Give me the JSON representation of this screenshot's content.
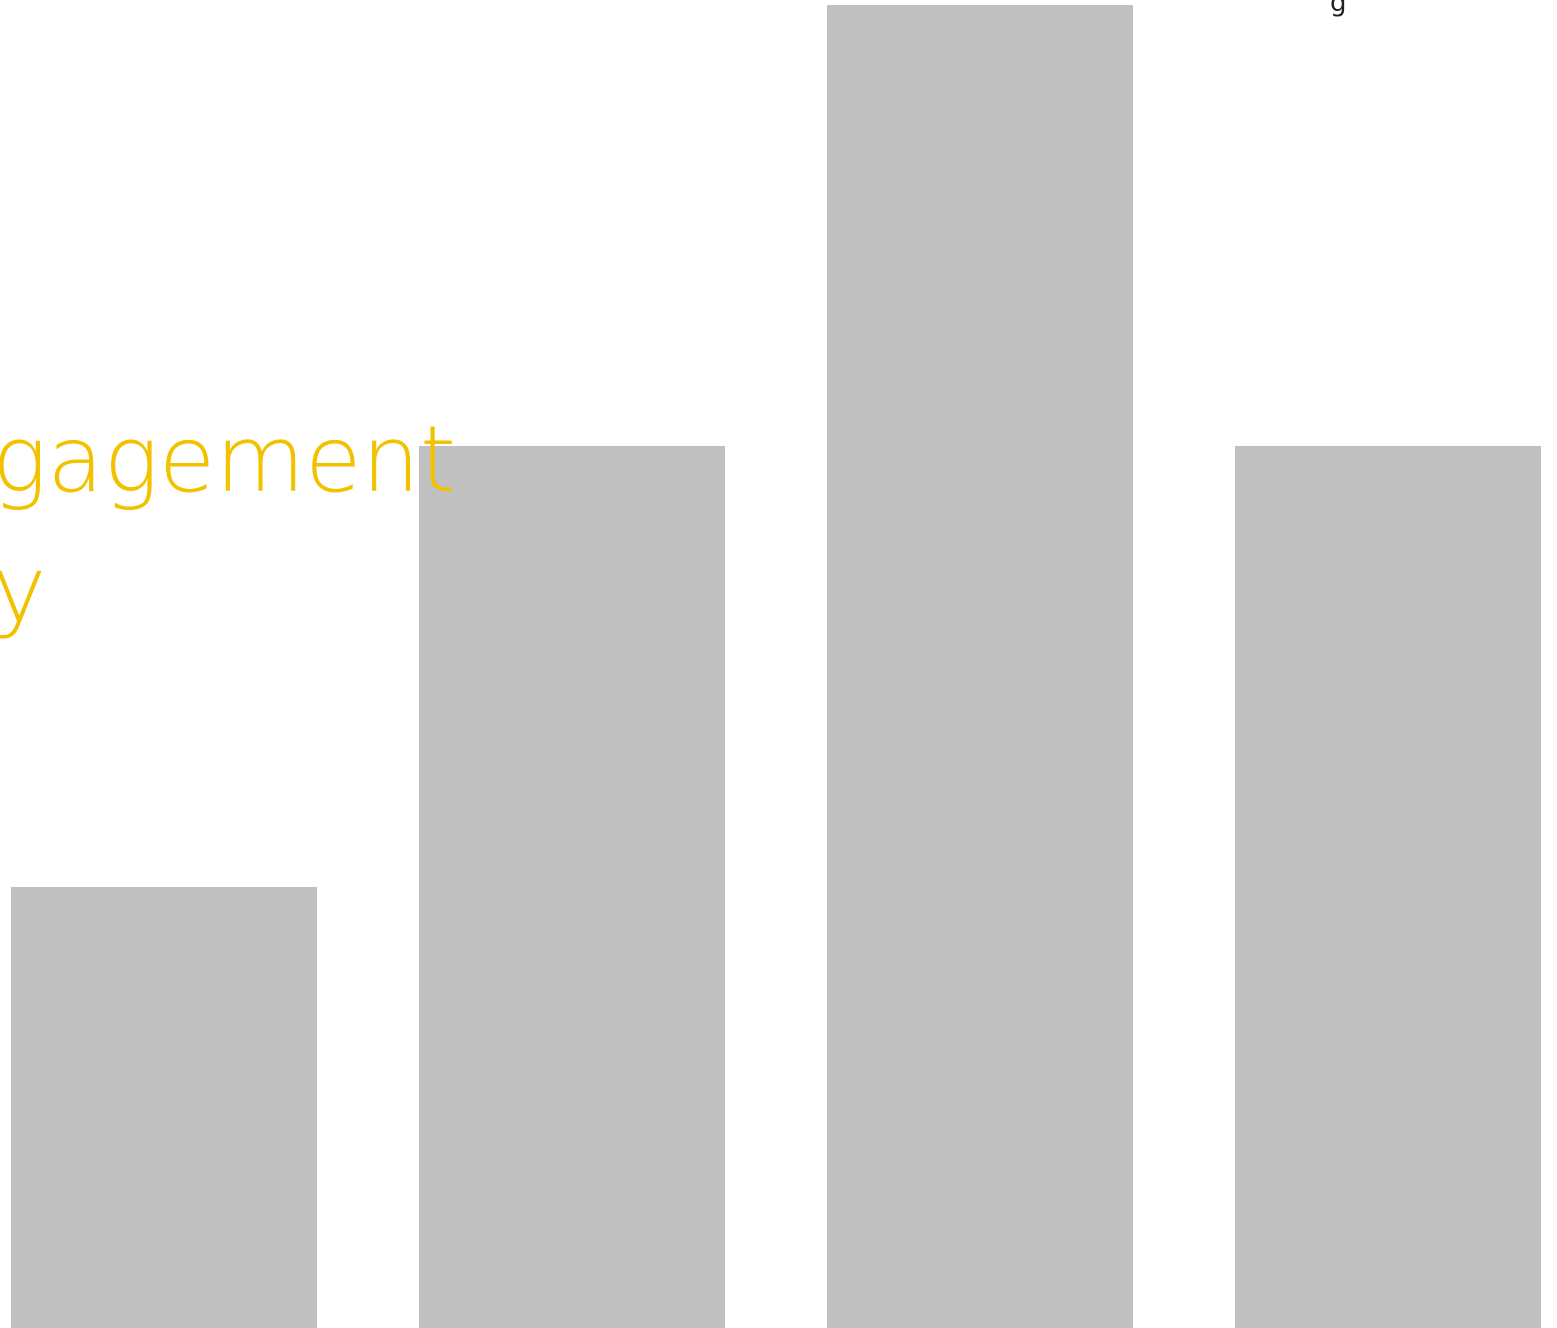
{
  "headline": {
    "line1": "gagement",
    "line2": "y",
    "color": "#f2c200"
  },
  "corner_text": "g",
  "chart_data": {
    "type": "bar",
    "title": "",
    "xlabel": "",
    "ylabel": "",
    "categories": [
      "",
      "",
      "",
      ""
    ],
    "values": [
      1,
      2,
      3,
      2
    ],
    "ylim": [
      0,
      3
    ],
    "bar_color": "#c0c0c0",
    "grid": false,
    "legend": "none"
  }
}
